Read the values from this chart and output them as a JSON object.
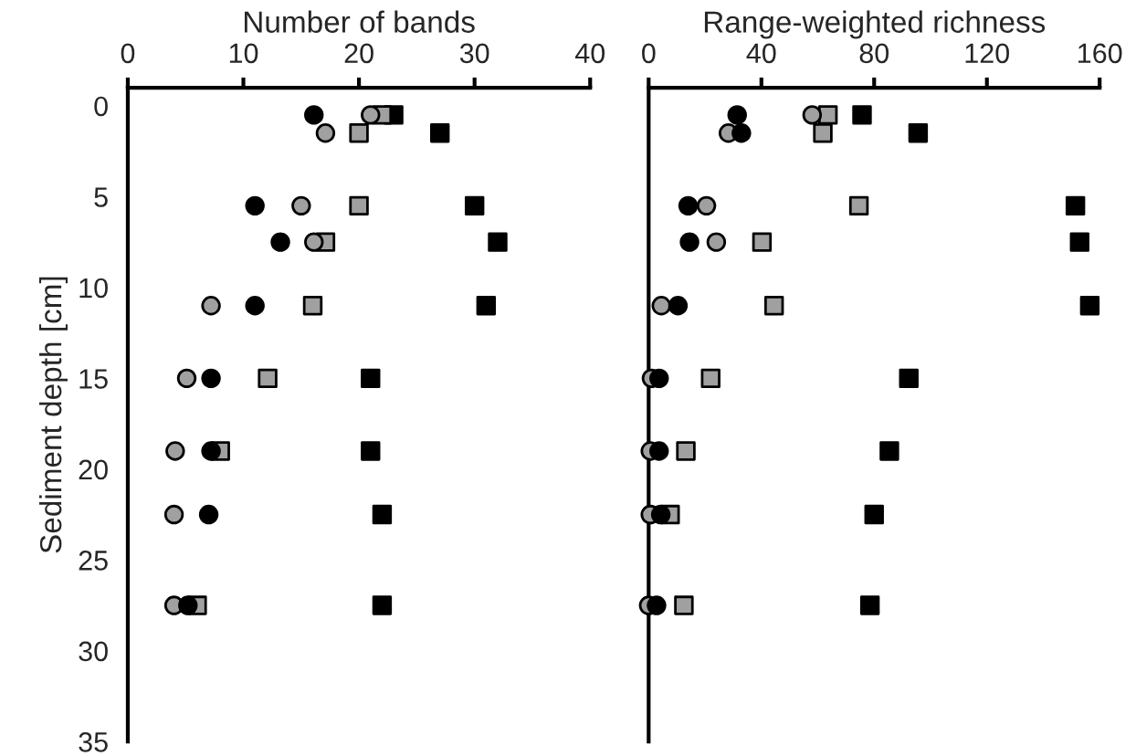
{
  "chart_data": [
    {
      "type": "scatter",
      "xlabel": "Number of bands",
      "ylabel": "Sediment depth [cm]",
      "xlim": [
        0,
        40
      ],
      "xticks": [
        0,
        10,
        20,
        30,
        40
      ],
      "ylim": [
        35,
        -1
      ],
      "yticks": [
        0,
        5,
        10,
        15,
        20,
        25,
        30,
        35
      ],
      "grid": false,
      "legend": false,
      "series": [
        {
          "color": "#000000",
          "marker": "circle",
          "x": [
            16.1,
            11,
            13.2,
            11,
            7.2,
            7.2,
            7,
            5.2
          ],
          "values": [
            0.5,
            5.5,
            7.5,
            11,
            15,
            19,
            22.5,
            27.5
          ]
        },
        {
          "color": "#a0a0a0",
          "marker": "circle",
          "x": [
            21,
            17.1,
            15,
            16.1,
            7.2,
            5.1,
            4.1,
            4,
            4
          ],
          "values": [
            0.5,
            1.5,
            5.5,
            7.5,
            11,
            15,
            19,
            22.5,
            27.5
          ]
        },
        {
          "color": "#a0a0a0",
          "marker": "square",
          "x": [
            22,
            20,
            20,
            17.1,
            16,
            12.1,
            8,
            6
          ],
          "values": [
            0.5,
            1.5,
            5.5,
            7.5,
            11,
            15,
            19,
            27.5
          ]
        },
        {
          "color": "#000000",
          "marker": "square",
          "x": [
            23,
            27,
            30,
            32,
            31,
            21,
            21,
            22,
            22
          ],
          "values": [
            0.5,
            1.5,
            5.5,
            7.5,
            11,
            15,
            19,
            22.5,
            27.5
          ]
        }
      ]
    },
    {
      "type": "scatter",
      "xlabel": "Range-weighted richness",
      "xlim": [
        0,
        160
      ],
      "xticks": [
        0,
        40,
        80,
        120,
        160
      ],
      "ylim": [
        35,
        -1
      ],
      "yticks": [
        0,
        5,
        10,
        15,
        20,
        25,
        30,
        35
      ],
      "tick_labels": "x",
      "grid": false,
      "legend": false,
      "series": [
        {
          "color": "#000000",
          "marker": "circle",
          "x": [
            31.4,
            32.9,
            14,
            14.5,
            10.4,
            3.7,
            3.7,
            4.3,
            2.8
          ],
          "values": [
            0.5,
            1.5,
            5.5,
            7.5,
            11,
            15,
            19,
            22.5,
            27.5
          ]
        },
        {
          "color": "#a0a0a0",
          "marker": "circle",
          "x": [
            58,
            28.3,
            20.5,
            24,
            4.5,
            1,
            0.6,
            0.6,
            0
          ],
          "values": [
            0.5,
            1.5,
            5.5,
            7.5,
            11,
            15,
            19,
            22.5,
            27.5
          ]
        },
        {
          "color": "#a0a0a0",
          "marker": "square",
          "x": [
            63.6,
            61.8,
            74.6,
            40.2,
            44.5,
            22,
            13.2,
            7.6,
            12.5
          ],
          "values": [
            0.5,
            1.5,
            5.5,
            7.5,
            11,
            15,
            19,
            22.5,
            27.5
          ]
        },
        {
          "color": "#000000",
          "marker": "square",
          "x": [
            75.7,
            95.6,
            151.4,
            152.9,
            156.5,
            92.3,
            85.4,
            80,
            78.5
          ],
          "values": [
            0.5,
            1.5,
            5.5,
            7.5,
            11,
            15,
            19,
            22.5,
            27.5
          ]
        }
      ]
    }
  ]
}
